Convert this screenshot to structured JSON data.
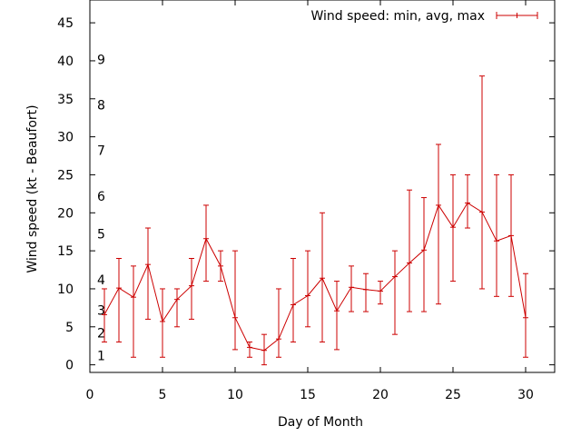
{
  "chart_data": {
    "type": "line",
    "title": "",
    "xlabel": "Day of Month",
    "ylabel": "Wind speed (kt - Beaufort)",
    "xlim": [
      0,
      32
    ],
    "ylim": [
      -1,
      48
    ],
    "x_ticks": [
      "0",
      "5",
      "10",
      "15",
      "20",
      "25",
      "30"
    ],
    "y_ticks": [
      "0",
      "5",
      "10",
      "15",
      "20",
      "25",
      "30",
      "35",
      "40",
      "45"
    ],
    "grid": false,
    "legend_position": "top-right",
    "series": [
      {
        "name": "Wind speed: min, avg, max",
        "color": "#cc0000",
        "x": [
          1,
          2,
          3,
          4,
          5,
          6,
          7,
          8,
          9,
          10,
          11,
          12,
          13,
          14,
          15,
          16,
          17,
          18,
          19,
          20,
          21,
          22,
          23,
          24,
          25,
          26,
          27,
          28,
          29,
          30
        ],
        "avg": [
          6.6,
          10.1,
          8.9,
          13.2,
          5.7,
          8.6,
          10.4,
          16.6,
          13.0,
          6.2,
          2.3,
          1.9,
          3.4,
          7.9,
          9.1,
          11.4,
          7.1,
          10.2,
          9.9,
          9.7,
          11.6,
          13.4,
          15.1,
          21.0,
          18.1,
          21.3,
          20.1,
          16.3,
          17.0,
          6.2
        ],
        "min": [
          3,
          3,
          1,
          6,
          1,
          5,
          6,
          11,
          11,
          2,
          1,
          0,
          1,
          3,
          5,
          3,
          2,
          7,
          7,
          8,
          4,
          7,
          7,
          8,
          11,
          18,
          10,
          9,
          9,
          1
        ],
        "max": [
          10,
          14,
          13,
          18,
          10,
          10,
          14,
          21,
          15,
          15,
          3,
          4,
          10,
          14,
          15,
          20,
          11,
          13,
          12,
          11,
          15,
          23,
          22,
          29,
          25,
          25,
          38,
          25,
          25,
          12
        ]
      }
    ],
    "annotations": [
      {
        "text": "1",
        "y": 1.2
      },
      {
        "text": "2",
        "y": 4.2
      },
      {
        "text": "3",
        "y": 7.2
      },
      {
        "text": "4",
        "y": 11.2
      },
      {
        "text": "5",
        "y": 17.2
      },
      {
        "text": "6",
        "y": 22.2
      },
      {
        "text": "7",
        "y": 28.2
      },
      {
        "text": "8",
        "y": 34.2
      },
      {
        "text": "9",
        "y": 40.2
      }
    ]
  }
}
